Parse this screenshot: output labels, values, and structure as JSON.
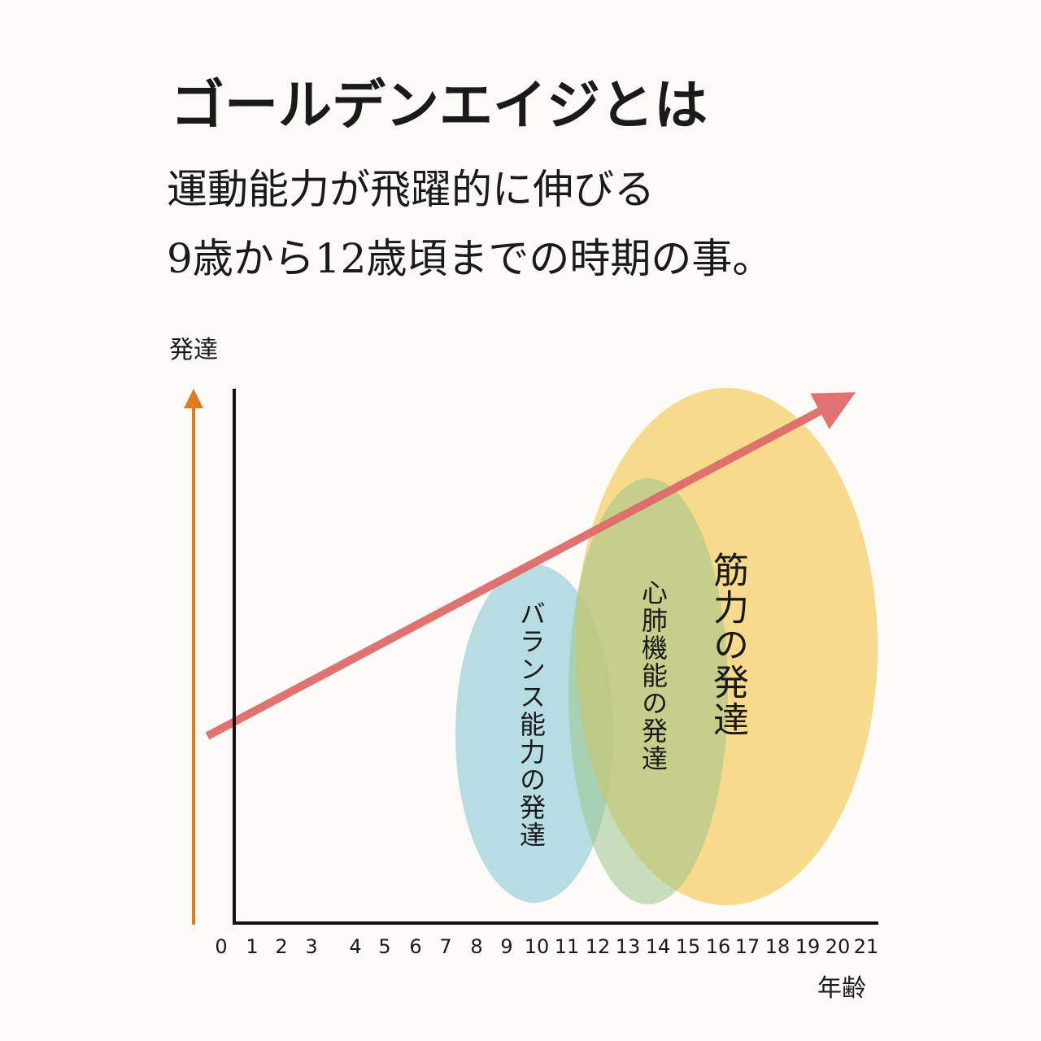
{
  "title": "ゴールデンエイジとは",
  "subtitle": [
    "運動能力が飛躍的に伸びる",
    "9歳から12歳頃までの時期の事。"
  ],
  "y_axis_label": "発達",
  "x_axis_label": "年齢",
  "x_ticks": [
    0,
    1,
    2,
    3,
    4,
    5,
    6,
    7,
    8,
    9,
    10,
    11,
    12,
    13,
    14,
    15,
    16,
    17,
    18,
    19,
    20,
    21
  ],
  "regions": [
    "バランス能力の発達",
    "心肺機能の発達",
    "筋力の発達"
  ]
}
